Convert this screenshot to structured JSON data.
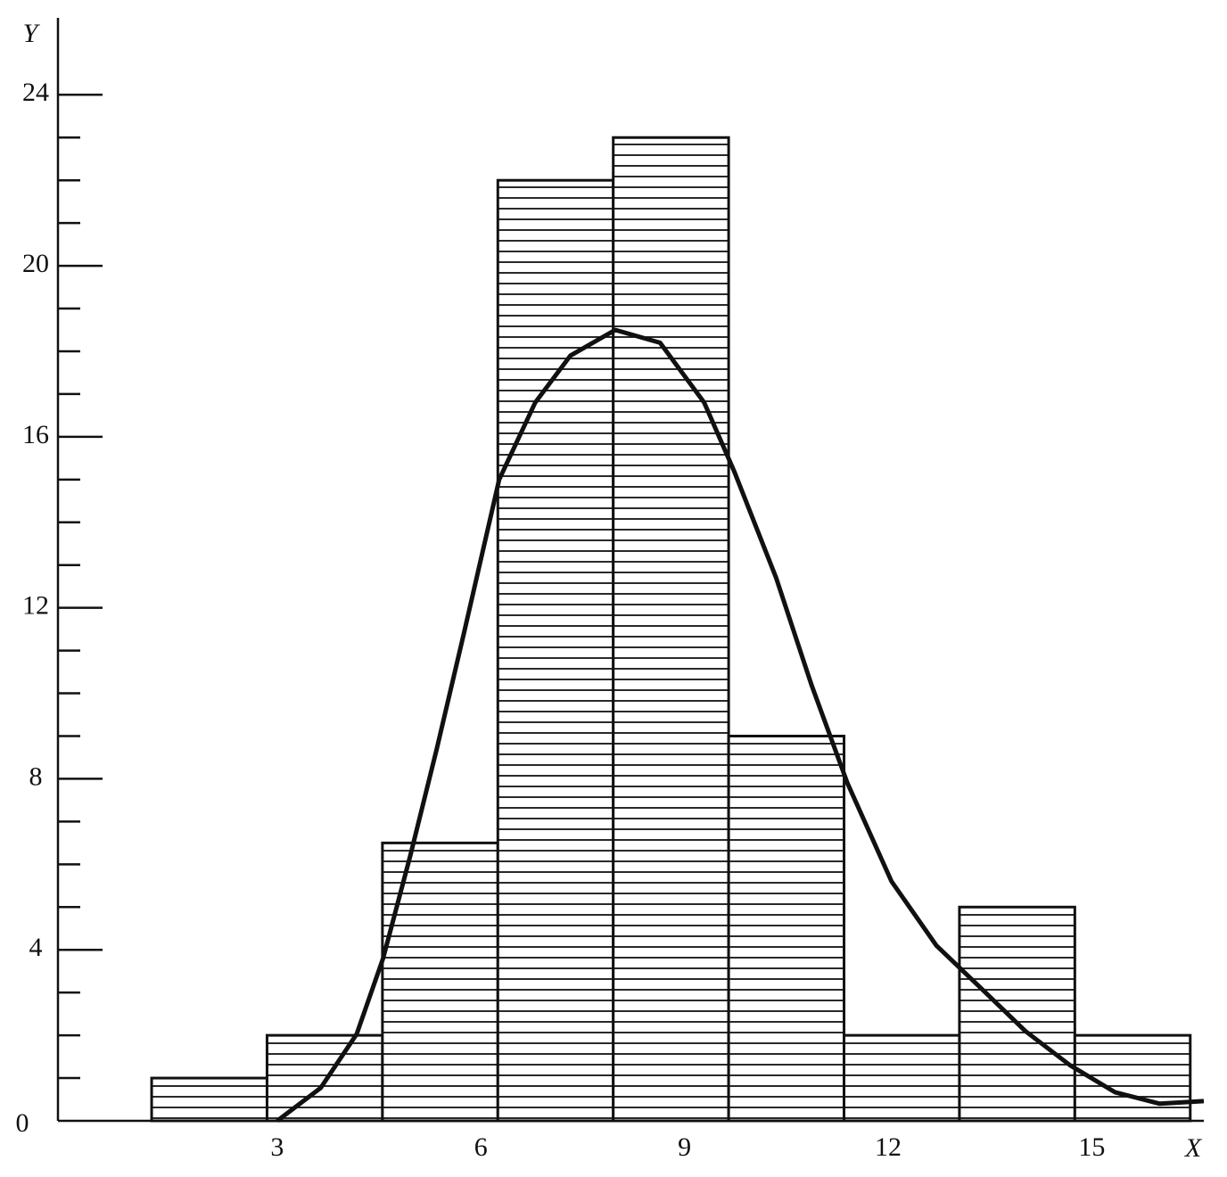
{
  "chart_data": {
    "type": "histogram",
    "bins": [
      1.15,
      2.85,
      4.55,
      6.25,
      7.95,
      9.65,
      11.35,
      13.05,
      14.75,
      16.45
    ],
    "values": [
      1,
      2,
      6.5,
      22,
      23,
      9,
      2,
      5,
      2
    ],
    "curve": {
      "x": [
        3.0,
        3.64,
        4.17,
        4.56,
        4.96,
        5.35,
        5.75,
        6.27,
        6.8,
        7.32,
        7.98,
        8.64,
        9.29,
        9.73,
        10.35,
        10.87,
        11.4,
        12.05,
        12.71,
        13.37,
        14.02,
        14.68,
        15.34,
        16.0,
        16.65
      ],
      "y": [
        0,
        0.77,
        2.03,
        3.8,
        6.2,
        8.7,
        11.4,
        15.0,
        16.8,
        17.9,
        18.5,
        18.2,
        16.8,
        15.2,
        12.7,
        10.2,
        7.9,
        5.6,
        4.1,
        3.1,
        2.1,
        1.3,
        0.67,
        0.4,
        0.46
      ]
    },
    "x_label": "X",
    "y_label": "Y",
    "xlim": [
      -0.23,
      16.65
    ],
    "ylim": [
      0,
      25.8
    ],
    "xticks": [
      3,
      6,
      9,
      12,
      15
    ],
    "yticks": [
      0,
      4,
      8,
      12,
      16,
      20,
      24
    ],
    "yminorticks": [
      1,
      2,
      3,
      5,
      6,
      7,
      9,
      10,
      11,
      13,
      14,
      15,
      17,
      18,
      19,
      21,
      22,
      23
    ],
    "color": "#111111"
  }
}
